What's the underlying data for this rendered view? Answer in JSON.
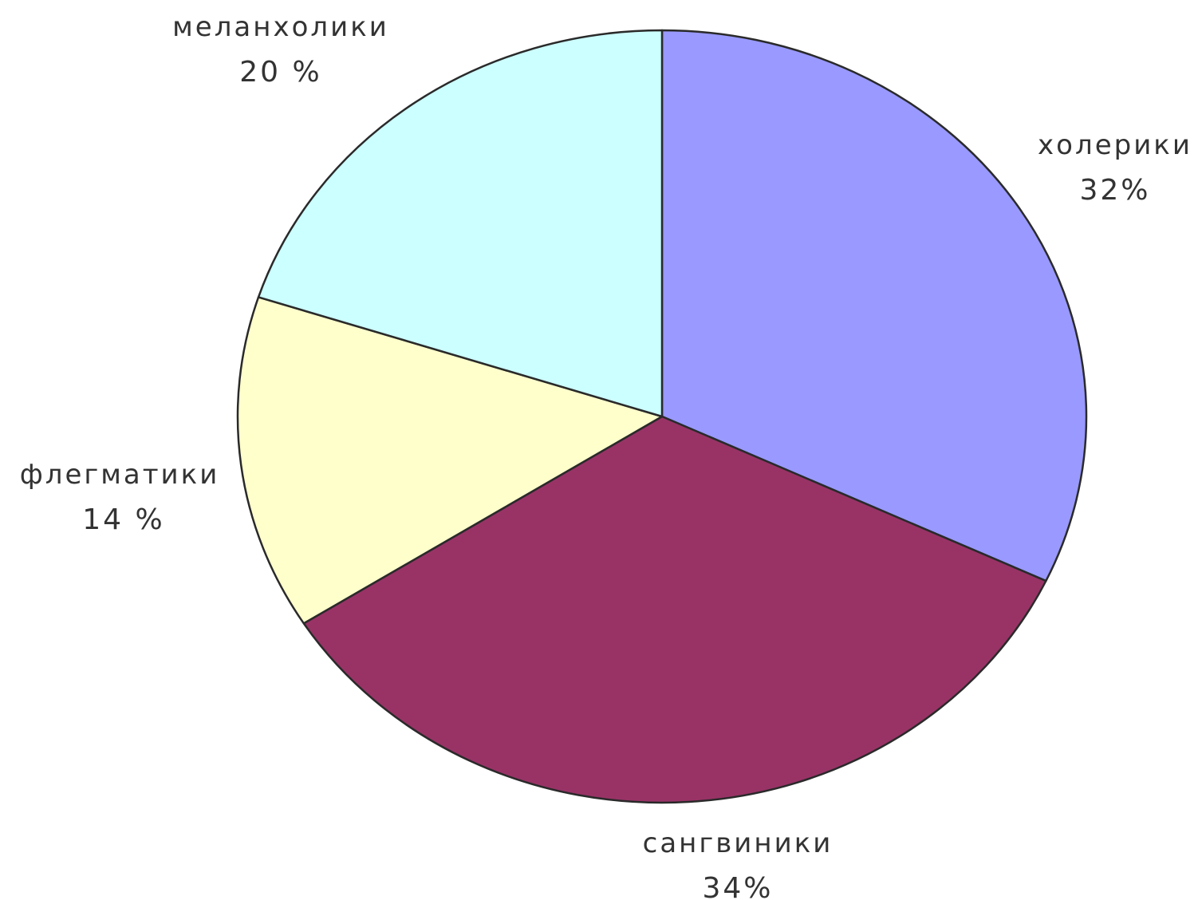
{
  "chart_data": {
    "type": "pie",
    "slices": [
      {
        "label": "холерики",
        "value": 32,
        "value_label": "32%",
        "color": "#9999ff"
      },
      {
        "label": "сангвиники",
        "value": 34,
        "value_label": "34%",
        "color": "#993366"
      },
      {
        "label": "флегматики",
        "value": 14,
        "value_label": "14 %",
        "color": "#ffffcc"
      },
      {
        "label": "меланхолики",
        "value": 20,
        "value_label": "20 %",
        "color": "#ccffff"
      }
    ],
    "start_angle_deg": 0,
    "direction": "clockwise",
    "labels": "outside",
    "legend": "none"
  }
}
